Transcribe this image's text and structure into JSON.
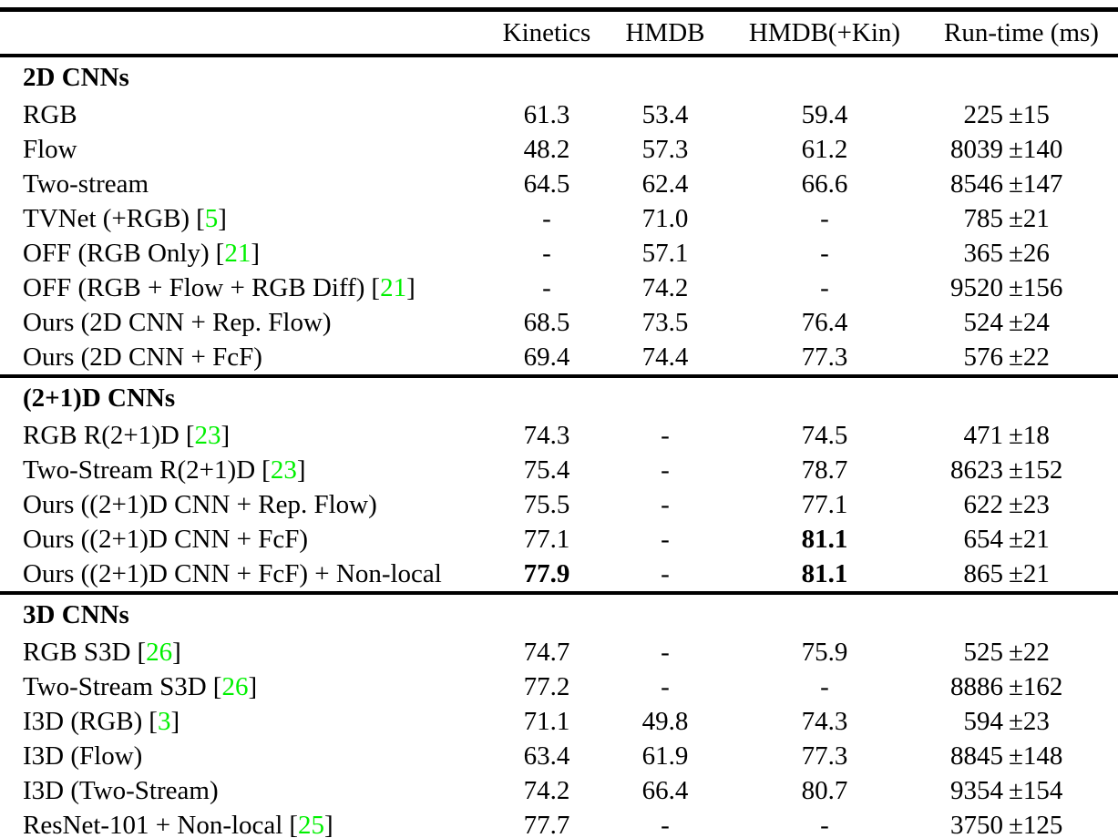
{
  "colors": {
    "background": "#ffffff",
    "text": "#000000",
    "rule": "#000000",
    "citation_green": "#00f000"
  },
  "table": {
    "columns": [
      "",
      "Kinetics",
      "HMDB",
      "HMDB(+Kin)",
      "Run-time (ms)"
    ],
    "sections": [
      {
        "title": "2D CNNs",
        "rows": [
          {
            "label": "RGB",
            "cite": null,
            "k": "61.3",
            "h": "53.4",
            "hk": "59.4",
            "rt": "225",
            "err": "±15",
            "bold": []
          },
          {
            "label": "Flow",
            "cite": null,
            "k": "48.2",
            "h": "57.3",
            "hk": "61.2",
            "rt": "8039",
            "err": "±140",
            "bold": []
          },
          {
            "label": "Two-stream",
            "cite": null,
            "k": "64.5",
            "h": "62.4",
            "hk": "66.6",
            "rt": "8546",
            "err": "±147",
            "bold": []
          },
          {
            "label": "TVNet (+RGB)",
            "cite": "5",
            "k": "-",
            "h": "71.0",
            "hk": "-",
            "rt": "785",
            "err": "±21",
            "bold": []
          },
          {
            "label": "OFF (RGB Only)",
            "cite": "21",
            "k": "-",
            "h": "57.1",
            "hk": "-",
            "rt": "365",
            "err": "±26",
            "bold": []
          },
          {
            "label": "OFF (RGB + Flow + RGB Diff)",
            "cite": "21",
            "k": "-",
            "h": "74.2",
            "hk": "-",
            "rt": "9520",
            "err": "±156",
            "bold": []
          },
          {
            "label": "Ours (2D CNN + Rep. Flow)",
            "cite": null,
            "k": "68.5",
            "h": "73.5",
            "hk": "76.4",
            "rt": "524",
            "err": "±24",
            "bold": []
          },
          {
            "label": "Ours (2D CNN + FcF)",
            "cite": null,
            "k": "69.4",
            "h": "74.4",
            "hk": "77.3",
            "rt": "576",
            "err": "±22",
            "bold": []
          }
        ]
      },
      {
        "title": "(2+1)D CNNs",
        "rows": [
          {
            "label": "RGB R(2+1)D",
            "cite": "23",
            "k": "74.3",
            "h": "-",
            "hk": "74.5",
            "rt": "471",
            "err": "±18",
            "bold": []
          },
          {
            "label": "Two-Stream R(2+1)D",
            "cite": "23",
            "k": "75.4",
            "h": "-",
            "hk": "78.7",
            "rt": "8623",
            "err": "±152",
            "bold": []
          },
          {
            "label": "Ours ((2+1)D CNN + Rep. Flow)",
            "cite": null,
            "k": "75.5",
            "h": "-",
            "hk": "77.1",
            "rt": "622",
            "err": "±23",
            "bold": []
          },
          {
            "label": "Ours ((2+1)D CNN + FcF)",
            "cite": null,
            "k": "77.1",
            "h": "-",
            "hk": "81.1",
            "rt": "654",
            "err": "±21",
            "bold": [
              "hk"
            ]
          },
          {
            "label": "Ours ((2+1)D CNN + FcF) + Non-local",
            "cite": null,
            "k": "77.9",
            "h": "-",
            "hk": "81.1",
            "rt": "865",
            "err": "±21",
            "bold": [
              "k",
              "hk"
            ]
          }
        ]
      },
      {
        "title": "3D CNNs",
        "rows": [
          {
            "label": "RGB S3D",
            "cite": "26",
            "k": "74.7",
            "h": "-",
            "hk": "75.9",
            "rt": "525",
            "err": "±22",
            "bold": []
          },
          {
            "label": "Two-Stream S3D",
            "cite": "26",
            "k": "77.2",
            "h": "-",
            "hk": "-",
            "rt": "8886",
            "err": "±162",
            "bold": []
          },
          {
            "label": "I3D (RGB)",
            "cite": "3",
            "k": "71.1",
            "h": "49.8",
            "hk": "74.3",
            "rt": "594",
            "err": "±23",
            "bold": []
          },
          {
            "label": "I3D (Flow)",
            "cite": null,
            "k": "63.4",
            "h": "61.9",
            "hk": "77.3",
            "rt": "8845",
            "err": "±148",
            "bold": []
          },
          {
            "label": "I3D (Two-Stream)",
            "cite": null,
            "k": "74.2",
            "h": "66.4",
            "hk": "80.7",
            "rt": "9354",
            "err": "±154",
            "bold": []
          },
          {
            "label": "ResNet-101 + Non-local",
            "cite": "25",
            "k": "77.7",
            "h": "-",
            "hk": "-",
            "rt": "3750",
            "err": "±125",
            "bold": []
          }
        ]
      }
    ]
  }
}
